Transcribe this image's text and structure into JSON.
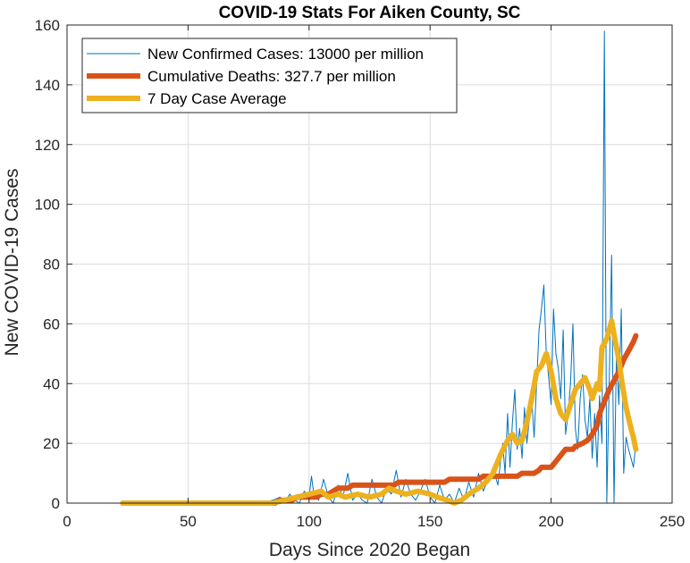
{
  "chart_data": {
    "type": "line",
    "title": "COVID-19 Stats For Aiken County, SC",
    "xlabel": "Days Since 2020 Began",
    "ylabel": "New COVID-19 Cases",
    "xlim": [
      0,
      250
    ],
    "ylim": [
      0,
      160
    ],
    "xticks": [
      0,
      50,
      100,
      150,
      200,
      250
    ],
    "yticks": [
      0,
      20,
      40,
      60,
      80,
      100,
      120,
      140,
      160
    ],
    "grid": true,
    "legend_position": "top-left",
    "series": [
      {
        "name": "New Confirmed Cases: 13000 per million",
        "color": "#0072BD",
        "line_width": "thin",
        "points": [
          [
            23,
            0
          ],
          [
            80,
            0
          ],
          [
            85,
            1
          ],
          [
            88,
            2
          ],
          [
            90,
            0
          ],
          [
            92,
            3
          ],
          [
            94,
            1
          ],
          [
            96,
            0
          ],
          [
            98,
            4
          ],
          [
            100,
            2
          ],
          [
            101,
            9
          ],
          [
            102,
            3
          ],
          [
            104,
            1
          ],
          [
            106,
            8
          ],
          [
            108,
            2
          ],
          [
            110,
            0
          ],
          [
            112,
            6
          ],
          [
            114,
            2
          ],
          [
            116,
            10
          ],
          [
            118,
            1
          ],
          [
            120,
            3
          ],
          [
            122,
            1
          ],
          [
            124,
            0
          ],
          [
            126,
            8
          ],
          [
            128,
            2
          ],
          [
            130,
            0
          ],
          [
            132,
            5
          ],
          [
            134,
            3
          ],
          [
            136,
            11
          ],
          [
            138,
            2
          ],
          [
            140,
            8
          ],
          [
            142,
            3
          ],
          [
            144,
            1
          ],
          [
            146,
            4
          ],
          [
            148,
            8
          ],
          [
            150,
            2
          ],
          [
            152,
            0
          ],
          [
            154,
            6
          ],
          [
            156,
            1
          ],
          [
            158,
            3
          ],
          [
            160,
            0
          ],
          [
            162,
            5
          ],
          [
            164,
            1
          ],
          [
            166,
            7
          ],
          [
            168,
            2
          ],
          [
            170,
            10
          ],
          [
            172,
            4
          ],
          [
            174,
            8
          ],
          [
            176,
            12
          ],
          [
            178,
            6
          ],
          [
            180,
            20
          ],
          [
            181,
            10
          ],
          [
            182,
            30
          ],
          [
            183,
            12
          ],
          [
            184,
            27
          ],
          [
            185,
            38
          ],
          [
            186,
            18
          ],
          [
            187,
            25
          ],
          [
            188,
            15
          ],
          [
            189,
            32
          ],
          [
            190,
            20
          ],
          [
            191,
            28
          ],
          [
            192,
            35
          ],
          [
            193,
            22
          ],
          [
            194,
            40
          ],
          [
            195,
            58
          ],
          [
            196,
            65
          ],
          [
            197,
            73
          ],
          [
            198,
            50
          ],
          [
            199,
            42
          ],
          [
            200,
            33
          ],
          [
            201,
            65
          ],
          [
            202,
            50
          ],
          [
            203,
            45
          ],
          [
            204,
            35
          ],
          [
            205,
            58
          ],
          [
            206,
            23
          ],
          [
            207,
            30
          ],
          [
            208,
            40
          ],
          [
            209,
            60
          ],
          [
            210,
            25
          ],
          [
            211,
            18
          ],
          [
            212,
            35
          ],
          [
            213,
            43
          ],
          [
            214,
            28
          ],
          [
            215,
            22
          ],
          [
            216,
            35
          ],
          [
            217,
            15
          ],
          [
            218,
            30
          ],
          [
            219,
            12
          ],
          [
            220,
            36
          ],
          [
            221,
            20
          ],
          [
            222,
            158
          ],
          [
            223,
            0
          ],
          [
            224,
            40
          ],
          [
            225,
            83
          ],
          [
            226,
            0
          ],
          [
            227,
            50
          ],
          [
            228,
            33
          ],
          [
            229,
            65
          ],
          [
            230,
            10
          ],
          [
            231,
            22
          ],
          [
            232,
            18
          ],
          [
            233,
            15
          ],
          [
            234,
            12
          ],
          [
            235,
            20
          ]
        ]
      },
      {
        "name": "Cumulative Deaths: 327.7 per million",
        "color": "#D95319",
        "line_width": "thick",
        "points": [
          [
            23,
            0
          ],
          [
            86,
            0
          ],
          [
            88,
            1
          ],
          [
            93,
            1
          ],
          [
            95,
            2
          ],
          [
            103,
            2
          ],
          [
            105,
            3
          ],
          [
            108,
            3
          ],
          [
            110,
            4
          ],
          [
            112,
            5
          ],
          [
            116,
            5
          ],
          [
            118,
            6
          ],
          [
            135,
            6
          ],
          [
            137,
            7
          ],
          [
            156,
            7
          ],
          [
            158,
            8
          ],
          [
            170,
            8
          ],
          [
            172,
            9
          ],
          [
            186,
            9
          ],
          [
            188,
            10
          ],
          [
            193,
            10
          ],
          [
            195,
            11
          ],
          [
            196,
            12
          ],
          [
            200,
            12
          ],
          [
            202,
            14
          ],
          [
            204,
            16
          ],
          [
            206,
            18
          ],
          [
            209,
            18
          ],
          [
            210,
            19
          ],
          [
            213,
            20
          ],
          [
            215,
            21
          ],
          [
            217,
            23
          ],
          [
            219,
            26
          ],
          [
            220,
            30
          ],
          [
            222,
            34
          ],
          [
            224,
            38
          ],
          [
            226,
            41
          ],
          [
            228,
            44
          ],
          [
            230,
            48
          ],
          [
            232,
            51
          ],
          [
            234,
            54
          ],
          [
            235,
            56
          ]
        ]
      },
      {
        "name": "7 Day Case Average",
        "color": "#EDB120",
        "line_width": "thick",
        "points": [
          [
            23,
            0
          ],
          [
            85,
            0
          ],
          [
            90,
            1
          ],
          [
            95,
            2
          ],
          [
            100,
            3
          ],
          [
            105,
            4
          ],
          [
            108,
            2
          ],
          [
            112,
            3
          ],
          [
            115,
            2
          ],
          [
            120,
            3
          ],
          [
            125,
            2
          ],
          [
            130,
            3
          ],
          [
            133,
            5
          ],
          [
            136,
            4
          ],
          [
            140,
            3
          ],
          [
            145,
            4
          ],
          [
            150,
            3
          ],
          [
            153,
            2
          ],
          [
            157,
            1
          ],
          [
            160,
            0
          ],
          [
            163,
            1
          ],
          [
            166,
            3
          ],
          [
            170,
            5
          ],
          [
            173,
            7
          ],
          [
            176,
            10
          ],
          [
            179,
            16
          ],
          [
            182,
            21
          ],
          [
            184,
            23
          ],
          [
            186,
            20
          ],
          [
            188,
            21
          ],
          [
            190,
            27
          ],
          [
            192,
            35
          ],
          [
            194,
            44
          ],
          [
            196,
            46
          ],
          [
            198,
            50
          ],
          [
            200,
            44
          ],
          [
            202,
            35
          ],
          [
            204,
            30
          ],
          [
            206,
            28
          ],
          [
            208,
            33
          ],
          [
            210,
            38
          ],
          [
            212,
            40
          ],
          [
            214,
            42
          ],
          [
            216,
            38
          ],
          [
            217,
            35
          ],
          [
            219,
            40
          ],
          [
            220,
            38
          ],
          [
            221,
            52
          ],
          [
            223,
            55
          ],
          [
            225,
            61
          ],
          [
            227,
            52
          ],
          [
            228,
            48
          ],
          [
            229,
            42
          ],
          [
            231,
            32
          ],
          [
            233,
            25
          ],
          [
            234,
            22
          ],
          [
            235,
            18
          ]
        ]
      }
    ]
  }
}
